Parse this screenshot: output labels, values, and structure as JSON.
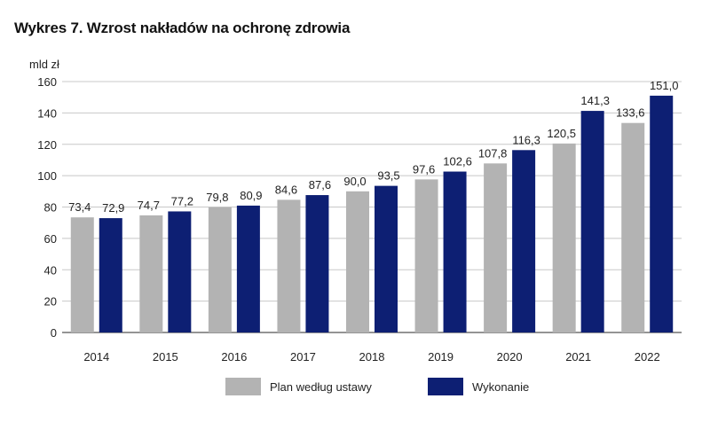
{
  "chart_data": {
    "type": "bar",
    "title": "Wykres 7. Wzrost nakładów na ochronę zdrowia",
    "ylabel": "mld zł",
    "xlabel": "",
    "ylim": [
      0,
      160
    ],
    "yticks": [
      0,
      20,
      40,
      60,
      80,
      100,
      120,
      140,
      160
    ],
    "grid": true,
    "legend_position": "bottom",
    "categories": [
      "2014",
      "2015",
      "2016",
      "2017",
      "2018",
      "2019",
      "2020",
      "2021",
      "2022"
    ],
    "series": [
      {
        "name": "Plan według ustawy",
        "color": "#b3b3b3",
        "values": [
          73.4,
          74.7,
          79.8,
          84.6,
          90.0,
          97.6,
          107.8,
          120.5,
          133.6
        ]
      },
      {
        "name": "Wykonanie",
        "color": "#0d1f73",
        "values": [
          72.9,
          77.2,
          80.9,
          87.6,
          93.5,
          102.6,
          116.3,
          141.3,
          151.0
        ]
      }
    ]
  }
}
